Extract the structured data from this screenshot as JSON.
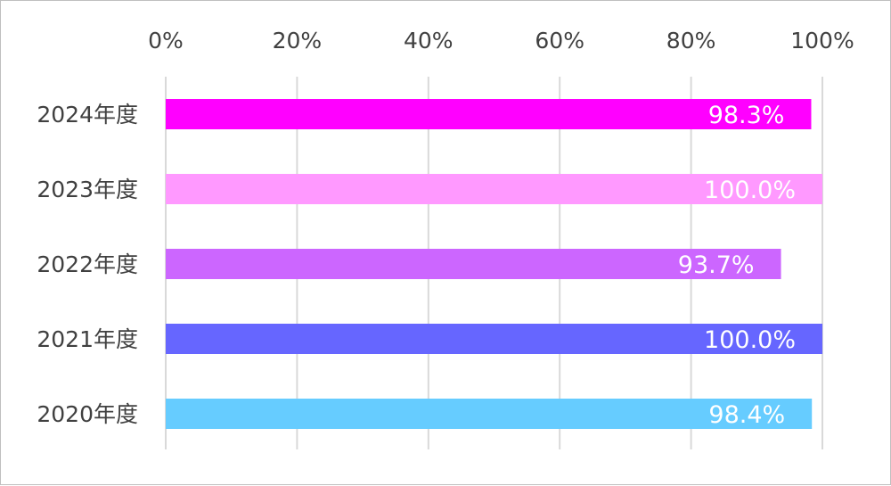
{
  "chart_data": {
    "type": "bar",
    "orientation": "horizontal",
    "categories": [
      "2024年度",
      "2023年度",
      "2022年度",
      "2021年度",
      "2020年度"
    ],
    "values": [
      98.3,
      100.0,
      93.7,
      100.0,
      98.4
    ],
    "data_labels": [
      "98.3%",
      "100.0%",
      "93.7%",
      "100.0%",
      "98.4%"
    ],
    "colors": [
      "#ff00ff",
      "#ff99ff",
      "#cc66ff",
      "#6666ff",
      "#66ccff"
    ],
    "x_ticks": [
      "0%",
      "20%",
      "40%",
      "60%",
      "80%",
      "100%"
    ],
    "xlim": [
      0,
      100
    ],
    "x_axis_position": "top",
    "grid": true,
    "legend": "none",
    "title": "",
    "xlabel": "",
    "ylabel": ""
  }
}
